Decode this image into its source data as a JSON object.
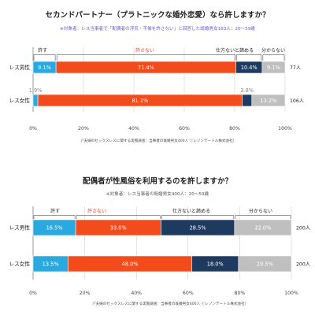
{
  "colors": {
    "allow": "#29a9e0",
    "not_allow": "#f24b1c",
    "cannot_say": "#1f3a5f",
    "unknown": "#bfbfbf"
  },
  "chart_data": [
    {
      "type": "bar",
      "orientation": "horizontal",
      "stacked": "percent",
      "title": "セカンドパートナー（プラトニックな婚外恋愛）なら許しますか？",
      "subtitle": "※対象者：レス当事者で「配偶者の浮気・不倫を許さない」と回答した既婚男女183人：20～59歳",
      "categories": [
        "レス男性",
        "レス女性"
      ],
      "totals": [
        "77人",
        "106人"
      ],
      "series": [
        {
          "name": "許す",
          "values": [
            9.1,
            1.9
          ],
          "labels": [
            "9.1%",
            "1.9%"
          ]
        },
        {
          "name": "許さない",
          "values": [
            71.4,
            81.1
          ],
          "labels": [
            "71.4%",
            "81.1%"
          ]
        },
        {
          "name": "仕方ないと諦める",
          "values": [
            10.4,
            3.8
          ],
          "labels": [
            "10.4%",
            "3.8%"
          ]
        },
        {
          "name": "分からない",
          "values": [
            9.1,
            13.2
          ],
          "labels": [
            "9.1%",
            "13.2%"
          ]
        }
      ],
      "xlim": [
        0,
        100
      ],
      "xticks": [
        "0%",
        "20%",
        "40%",
        "60%",
        "80%",
        "100%"
      ],
      "grid": true,
      "legend": "top",
      "note": "（「夫婦のセックスレスに関する実態調査：当事者の既婚男女400人 ⓒレゾンデートル株式会社）"
    },
    {
      "type": "bar",
      "orientation": "horizontal",
      "stacked": "percent",
      "title": "配偶者が性風俗を利用するのを許しますか？",
      "subtitle": "※対象者：レス当事者の既婚男女400人：20～59歳",
      "categories": [
        "レス男性",
        "レス女性"
      ],
      "totals": [
        "200人",
        "200人"
      ],
      "series": [
        {
          "name": "許す",
          "values": [
            16.5,
            13.5
          ],
          "labels": [
            "16.5%",
            "13.5%"
          ]
        },
        {
          "name": "許さない",
          "values": [
            33.0,
            48.0
          ],
          "labels": [
            "33.0%",
            "48.0%"
          ]
        },
        {
          "name": "仕方ないと諦める",
          "values": [
            28.5,
            18.0
          ],
          "labels": [
            "28.5%",
            "18.0%"
          ]
        },
        {
          "name": "分からない",
          "values": [
            22.0,
            20.5
          ],
          "labels": [
            "22.0%",
            "20.5%"
          ]
        }
      ],
      "xlim": [
        0,
        100
      ],
      "xticks": [
        "0%",
        "20%",
        "40%",
        "60%",
        "80%",
        "100%"
      ],
      "grid": true,
      "legend": "top",
      "note": "（「夫婦のセックスレスに関する実態調査：当事者の既婚男女400人 ⓒレゾンデートル株式会社）"
    }
  ]
}
